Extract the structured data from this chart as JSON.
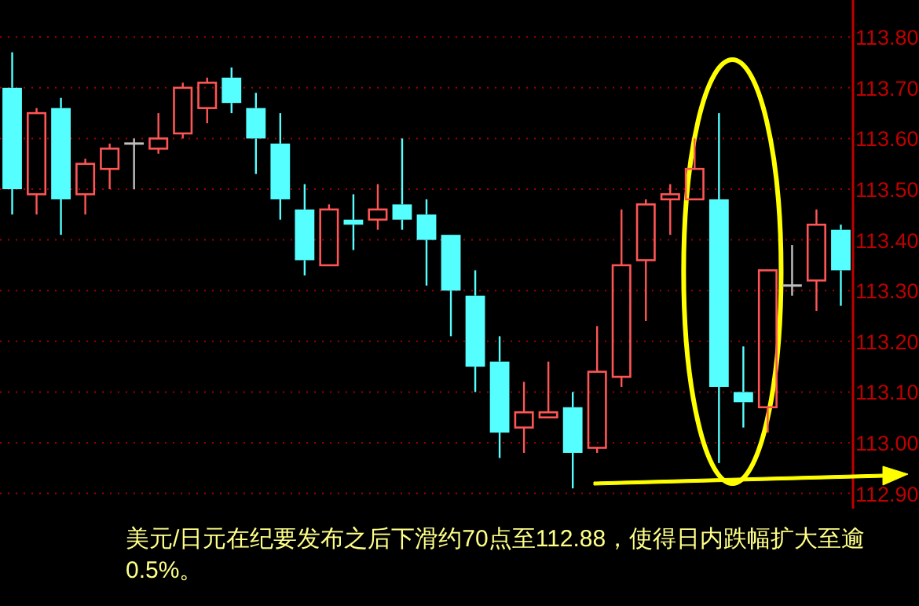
{
  "chart_data": {
    "type": "candlestick",
    "categories": [
      null,
      null,
      null,
      null,
      null,
      null,
      null,
      null,
      null,
      null,
      null,
      null,
      null,
      null,
      null,
      null,
      null,
      null,
      null,
      null,
      null,
      null,
      null,
      null,
      null,
      null,
      null,
      null,
      null,
      null,
      null,
      null,
      null,
      null,
      null
    ],
    "ohlc": [
      [
        113.7,
        113.77,
        113.45,
        113.5
      ],
      [
        113.49,
        113.66,
        113.45,
        113.65
      ],
      [
        113.66,
        113.68,
        113.41,
        113.48
      ],
      [
        113.49,
        113.56,
        113.45,
        113.55
      ],
      [
        113.54,
        113.59,
        113.5,
        113.58
      ],
      [
        113.59,
        113.6,
        113.5,
        113.59
      ],
      [
        113.58,
        113.65,
        113.57,
        113.6
      ],
      [
        113.61,
        113.71,
        113.6,
        113.7
      ],
      [
        113.66,
        113.72,
        113.63,
        113.71
      ],
      [
        113.72,
        113.74,
        113.65,
        113.67
      ],
      [
        113.66,
        113.69,
        113.53,
        113.6
      ],
      [
        113.59,
        113.65,
        113.44,
        113.48
      ],
      [
        113.46,
        113.51,
        113.33,
        113.36
      ],
      [
        113.35,
        113.47,
        113.35,
        113.46
      ],
      [
        113.44,
        113.49,
        113.38,
        113.43
      ],
      [
        113.44,
        113.51,
        113.42,
        113.46
      ],
      [
        113.47,
        113.6,
        113.42,
        113.44
      ],
      [
        113.45,
        113.48,
        113.31,
        113.4
      ],
      [
        113.41,
        113.41,
        113.21,
        113.3
      ],
      [
        113.29,
        113.34,
        113.1,
        113.15
      ],
      [
        113.16,
        113.21,
        112.97,
        113.02
      ],
      [
        113.03,
        113.12,
        112.98,
        113.06
      ],
      [
        113.05,
        113.16,
        113.05,
        113.06
      ],
      [
        113.07,
        113.1,
        112.91,
        112.98
      ],
      [
        112.99,
        113.23,
        112.98,
        113.14
      ],
      [
        113.13,
        113.46,
        113.11,
        113.35
      ],
      [
        113.36,
        113.48,
        113.24,
        113.47
      ],
      [
        113.48,
        113.51,
        113.41,
        113.49
      ],
      [
        113.48,
        113.6,
        113.48,
        113.54
      ],
      [
        113.48,
        113.65,
        112.96,
        113.11
      ],
      [
        113.1,
        113.19,
        113.03,
        113.08
      ],
      [
        113.07,
        113.34,
        113.02,
        113.34
      ],
      [
        113.31,
        113.39,
        113.29,
        113.31
      ],
      [
        113.32,
        113.46,
        113.26,
        113.43
      ],
      [
        113.42,
        113.43,
        113.27,
        113.34
      ]
    ],
    "colors": [
      "#55ffff",
      "#ff5555",
      "#55ffff",
      "#ff5555",
      "#ff5555",
      "#c0c0c0",
      "#ff5555",
      "#ff5555",
      "#ff5555",
      "#55ffff",
      "#55ffff",
      "#55ffff",
      "#55ffff",
      "#ff5555",
      "#55ffff",
      "#ff5555",
      "#55ffff",
      "#55ffff",
      "#55ffff",
      "#55ffff",
      "#55ffff",
      "#ff5555",
      "#ff5555",
      "#55ffff",
      "#ff5555",
      "#ff5555",
      "#ff5555",
      "#ff5555",
      "#ff5555",
      "#55ffff",
      "#55ffff",
      "#ff5555",
      "#c0c0c0",
      "#ff5555",
      "#55ffff"
    ],
    "ylim": [
      112.87,
      113.87
    ],
    "yticks": [
      {
        "value": 112.9,
        "label": "112.90"
      },
      {
        "value": 113.0,
        "label": "113.00"
      },
      {
        "value": 113.1,
        "label": "113.10"
      },
      {
        "value": 113.2,
        "label": "113.20"
      },
      {
        "value": 113.3,
        "label": "113.30"
      },
      {
        "value": 113.4,
        "label": "113.40"
      },
      {
        "value": 113.5,
        "label": "113.50"
      },
      {
        "value": 113.6,
        "label": "113.60"
      },
      {
        "value": 113.7,
        "label": "113.70"
      },
      {
        "value": 113.8,
        "label": "113.80"
      }
    ],
    "grid": "y",
    "annotations": [
      "美元/日元在纪要发布之后下滑约70点至112.88，使得日内跌幅扩大至逾0.5%。"
    ]
  }
}
